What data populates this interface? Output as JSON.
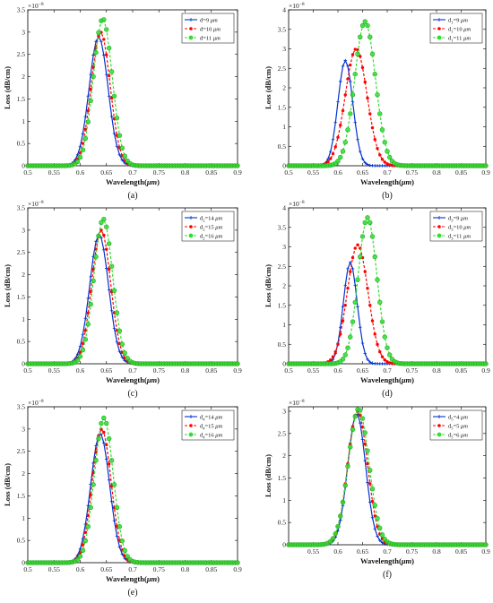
{
  "chart_data": [
    {
      "type": "line",
      "panel_label": "(a)",
      "xlabel": "Wavelength(",
      "xlabel_unit": "μm",
      "ylabel": "Loss (dB/cm)",
      "exponent": "×10",
      "exponent_power": "−8",
      "xlim": [
        0.5,
        0.9
      ],
      "ylim": [
        0,
        3.5
      ],
      "xticks": [
        "0.5",
        "0.55",
        "0.6",
        "0.65",
        "0.7",
        "0.75",
        "0.8",
        "0.85",
        "0.9"
      ],
      "yticks": [
        "0",
        "0.5",
        "1",
        "1.5",
        "2",
        "2.5",
        "3",
        "3.5"
      ],
      "legend_position": "top-right",
      "series": [
        {
          "name": "d=9",
          "unit": "μm",
          "color": "#0033cc",
          "marker": "plus",
          "dash": "solid",
          "peak_x": 0.635,
          "peak_y": 2.9,
          "sigma": 0.018
        },
        {
          "name": "d=10",
          "unit": "μm",
          "color": "#ff0000",
          "marker": "dot",
          "dash": "dashed",
          "peak_x": 0.639,
          "peak_y": 3.0,
          "sigma": 0.018
        },
        {
          "name": "d=11",
          "unit": "μm",
          "color": "#33dd33",
          "marker": "circle",
          "dash": "dashed",
          "peak_x": 0.643,
          "peak_y": 3.3,
          "sigma": 0.018
        }
      ]
    },
    {
      "type": "line",
      "panel_label": "(b)",
      "xlabel": "Wavelength(",
      "xlabel_unit": "μm",
      "ylabel": "Loss (dB/cm)",
      "exponent": "×10",
      "exponent_power": "−8",
      "xlim": [
        0.5,
        0.9
      ],
      "ylim": [
        0,
        4
      ],
      "xticks": [
        "0.5",
        "0.55",
        "0.6",
        "0.65",
        "0.7",
        "0.75",
        "0.8",
        "0.85",
        "0.9"
      ],
      "yticks": [
        "0",
        "0.5",
        "1",
        "1.5",
        "2",
        "2.5",
        "3",
        "3.5",
        "4"
      ],
      "legend_position": "top-right",
      "series": [
        {
          "name": "d",
          "sub": "1",
          "value": "=9",
          "unit": "μm",
          "color": "#0033cc",
          "marker": "plus",
          "dash": "solid",
          "peak_x": 0.615,
          "peak_y": 2.7,
          "sigma": 0.015
        },
        {
          "name": "d",
          "sub": "1",
          "value": "=10",
          "unit": "μm",
          "color": "#ff0000",
          "marker": "dot",
          "dash": "dashed",
          "peak_x": 0.637,
          "peak_y": 3.0,
          "sigma": 0.022
        },
        {
          "name": "d",
          "sub": "1",
          "value": "=11",
          "unit": "μm",
          "color": "#33dd33",
          "marker": "circle",
          "dash": "dashed",
          "peak_x": 0.655,
          "peak_y": 3.7,
          "sigma": 0.021
        }
      ]
    },
    {
      "type": "line",
      "panel_label": "(c)",
      "xlabel": "Wavelength(",
      "xlabel_unit": "μm",
      "ylabel": "Loss (dB/cm)",
      "exponent": "×10",
      "exponent_power": "−8",
      "xlim": [
        0.5,
        0.9
      ],
      "ylim": [
        0,
        3.5
      ],
      "xticks": [
        "0.5",
        "0.55",
        "0.6",
        "0.65",
        "0.7",
        "0.75",
        "0.8",
        "0.85",
        "0.9"
      ],
      "yticks": [
        "0",
        "0.5",
        "1",
        "1.5",
        "2",
        "2.5",
        "3",
        "3.5"
      ],
      "legend_position": "top-right",
      "series": [
        {
          "name": "d",
          "sub": "2",
          "value": "=14",
          "unit": "μm",
          "color": "#0033cc",
          "marker": "plus",
          "dash": "solid",
          "peak_x": 0.636,
          "peak_y": 2.9,
          "sigma": 0.018
        },
        {
          "name": "d",
          "sub": "2",
          "value": "=15",
          "unit": "μm",
          "color": "#ff0000",
          "marker": "dot",
          "dash": "dashed",
          "peak_x": 0.64,
          "peak_y": 3.0,
          "sigma": 0.018
        },
        {
          "name": "d",
          "sub": "2",
          "value": "=16",
          "unit": "μm",
          "color": "#33dd33",
          "marker": "circle",
          "dash": "dashed",
          "peak_x": 0.644,
          "peak_y": 3.25,
          "sigma": 0.018
        }
      ]
    },
    {
      "type": "line",
      "panel_label": "(d)",
      "xlabel": "Wavelength(",
      "xlabel_unit": "μm",
      "ylabel": "Loss (dB/cm)",
      "exponent": "×10",
      "exponent_power": "−8",
      "xlim": [
        0.5,
        0.9
      ],
      "ylim": [
        0,
        4
      ],
      "xticks": [
        "0.5",
        "0.55",
        "0.6",
        "0.65",
        "0.7",
        "0.75",
        "0.8",
        "0.85",
        "0.9"
      ],
      "yticks": [
        "0",
        "0.5",
        "1",
        "1.5",
        "2",
        "2.5",
        "3",
        "3.5",
        "4"
      ],
      "legend_position": "top-right",
      "series": [
        {
          "name": "d",
          "sub": "3",
          "value": "=9",
          "unit": "μm",
          "color": "#0033cc",
          "marker": "plus",
          "dash": "solid",
          "peak_x": 0.625,
          "peak_y": 2.6,
          "sigma": 0.014
        },
        {
          "name": "d",
          "sub": "3",
          "value": "=10",
          "unit": "μm",
          "color": "#ff0000",
          "marker": "dot",
          "dash": "dashed",
          "peak_x": 0.64,
          "peak_y": 3.05,
          "sigma": 0.021
        },
        {
          "name": "d",
          "sub": "3",
          "value": "=11",
          "unit": "μm",
          "color": "#33dd33",
          "marker": "circle",
          "dash": "dashed",
          "peak_x": 0.66,
          "peak_y": 3.75,
          "sigma": 0.019
        }
      ]
    },
    {
      "type": "line",
      "panel_label": "(e)",
      "xlabel": "Wavelength(",
      "xlabel_unit": "μm",
      "ylabel": "Loss (dB/cm)",
      "exponent": "×10",
      "exponent_power": "−8",
      "xlim": [
        0.5,
        0.9
      ],
      "ylim": [
        0,
        3.5
      ],
      "xticks": [
        "0.5",
        "0.55",
        "0.6",
        "0.65",
        "0.7",
        "0.75",
        "0.8",
        "0.85",
        "0.9"
      ],
      "yticks": [
        "0",
        "0.5",
        "1",
        "1.5",
        "2",
        "2.5",
        "3",
        "3.5"
      ],
      "legend_position": "top-right",
      "series": [
        {
          "name": "d",
          "sub": "4",
          "value": "=14",
          "unit": "μm",
          "color": "#0033cc",
          "marker": "plus",
          "dash": "solid",
          "peak_x": 0.638,
          "peak_y": 2.9,
          "sigma": 0.018
        },
        {
          "name": "d",
          "sub": "4",
          "value": "=15",
          "unit": "μm",
          "color": "#ff0000",
          "marker": "dot",
          "dash": "dashed",
          "peak_x": 0.641,
          "peak_y": 3.0,
          "sigma": 0.018
        },
        {
          "name": "d",
          "sub": "4",
          "value": "=16",
          "unit": "μm",
          "color": "#33dd33",
          "marker": "circle",
          "dash": "dashed",
          "peak_x": 0.645,
          "peak_y": 3.25,
          "sigma": 0.018
        }
      ]
    },
    {
      "type": "line",
      "panel_label": "(f)",
      "xlabel": "Wavelength(",
      "xlabel_unit": "μm",
      "ylabel": "Loss (dB/cm)",
      "exponent": "×10",
      "exponent_power": "−8",
      "xlim": [
        0.5,
        0.9
      ],
      "ylim": [
        0,
        3.1
      ],
      "xticks": [
        "0.55",
        "0.6",
        "0.65",
        "0.7",
        "0.75",
        "0.8",
        "0.85",
        "0.9"
      ],
      "yticks": [
        "0",
        "0.5",
        "1",
        "1.5",
        "2",
        "2.5",
        "3"
      ],
      "legend_position": "top-right",
      "series": [
        {
          "name": "d",
          "sub": "5",
          "value": "=4",
          "unit": "μm",
          "color": "#0033cc",
          "marker": "plus",
          "dash": "solid",
          "peak_x": 0.638,
          "peak_y": 2.95,
          "sigma": 0.018
        },
        {
          "name": "d",
          "sub": "5",
          "value": "=5",
          "unit": "μm",
          "color": "#ff0000",
          "marker": "dot",
          "dash": "dashed",
          "peak_x": 0.64,
          "peak_y": 3.0,
          "sigma": 0.02
        },
        {
          "name": "d",
          "sub": "5",
          "value": "=6",
          "unit": "μm",
          "color": "#33dd33",
          "marker": "circle",
          "dash": "dashed",
          "peak_x": 0.642,
          "peak_y": 3.05,
          "sigma": 0.021
        }
      ]
    }
  ]
}
